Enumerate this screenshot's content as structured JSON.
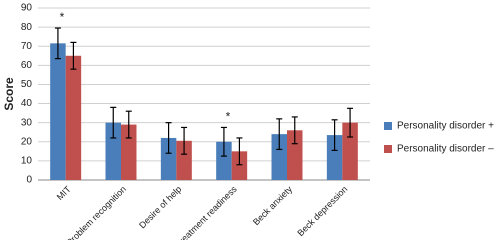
{
  "chart_data": {
    "type": "bar",
    "y_label": "Score",
    "categories": [
      "MIT",
      "Problem recognition",
      "Desire of help",
      "Treatment readiness",
      "Beck anxiety",
      "Beck depression"
    ],
    "series": [
      {
        "name": "Personality disorder +",
        "color": "#4a7ebb",
        "values": [
          71.5,
          30,
          22,
          20,
          24,
          23.5
        ],
        "errors": [
          8,
          8,
          8,
          7.5,
          8,
          8
        ]
      },
      {
        "name": "Personality disorder –",
        "color": "#c0504d",
        "values": [
          65,
          29,
          20.5,
          15,
          26,
          30
        ],
        "errors": [
          7,
          7,
          7,
          7,
          7,
          7.5
        ]
      }
    ],
    "annotations": [
      {
        "text": "*",
        "category": "MIT"
      },
      {
        "text": "*",
        "category": "Treatment readiness"
      }
    ],
    "ylim": [
      0,
      90
    ],
    "yticks": [
      0,
      10,
      20,
      30,
      40,
      50,
      60,
      70,
      80,
      90
    ],
    "grid": true,
    "legend": "right"
  }
}
